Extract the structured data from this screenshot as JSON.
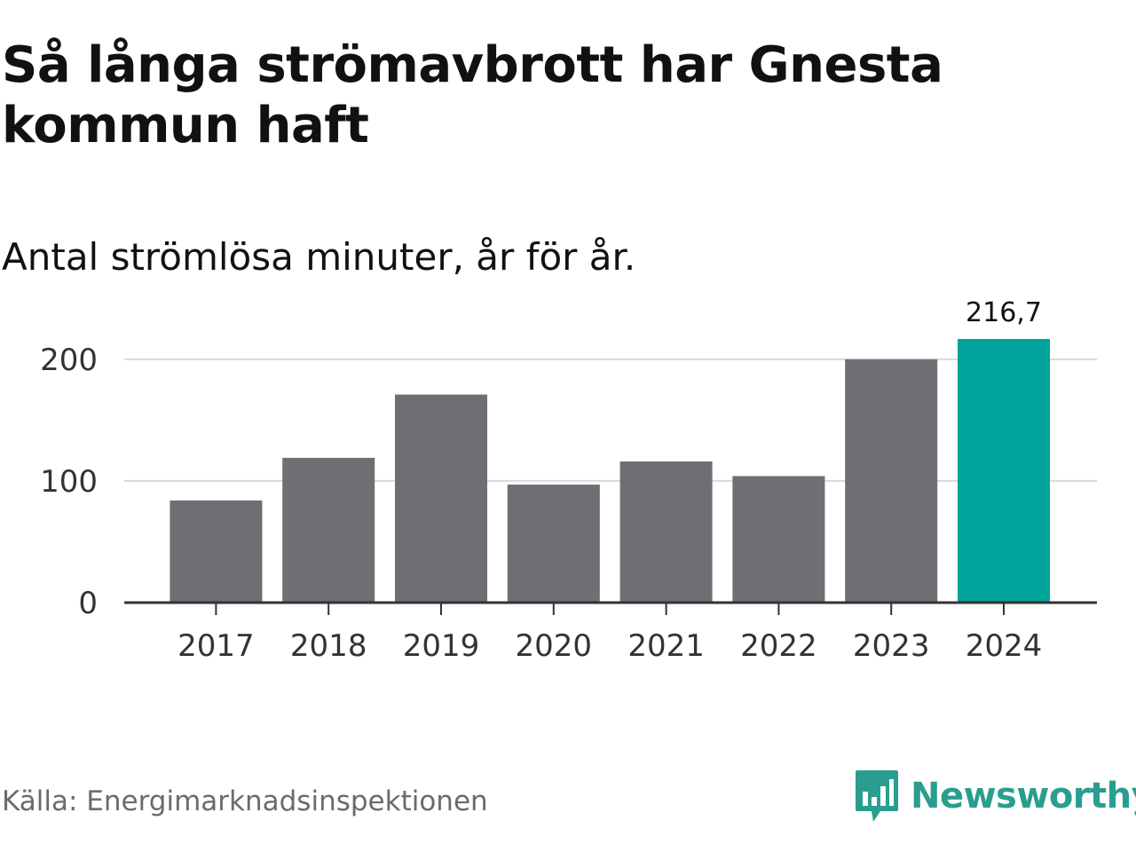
{
  "title": "Så långa strömavbrott har Gnesta kommun haft",
  "subtitle": "Antal strömlösa minuter, år för år.",
  "source": "Källa: Energimarknadsinspektionen",
  "brand": "Newsworthy",
  "colors": {
    "bar": "#6f6e74",
    "highlight": "#00a39a",
    "brand": "#2a9d8f",
    "grid": "#d9d9d9",
    "axis": "#333333"
  },
  "chart_data": {
    "type": "bar",
    "title": "Så långa strömavbrott har Gnesta kommun haft",
    "subtitle": "Antal strömlösa minuter, år för år.",
    "xlabel": "",
    "ylabel": "",
    "categories": [
      "2017",
      "2018",
      "2019",
      "2020",
      "2021",
      "2022",
      "2023",
      "2024"
    ],
    "values": [
      84,
      119,
      171,
      97,
      116,
      104,
      200,
      216.7
    ],
    "highlight_index": 7,
    "data_labels": [
      {
        "index": 7,
        "text": "216,7"
      }
    ],
    "yticks": [
      0,
      100,
      200
    ],
    "ylim": [
      0,
      240
    ],
    "grid": true
  }
}
